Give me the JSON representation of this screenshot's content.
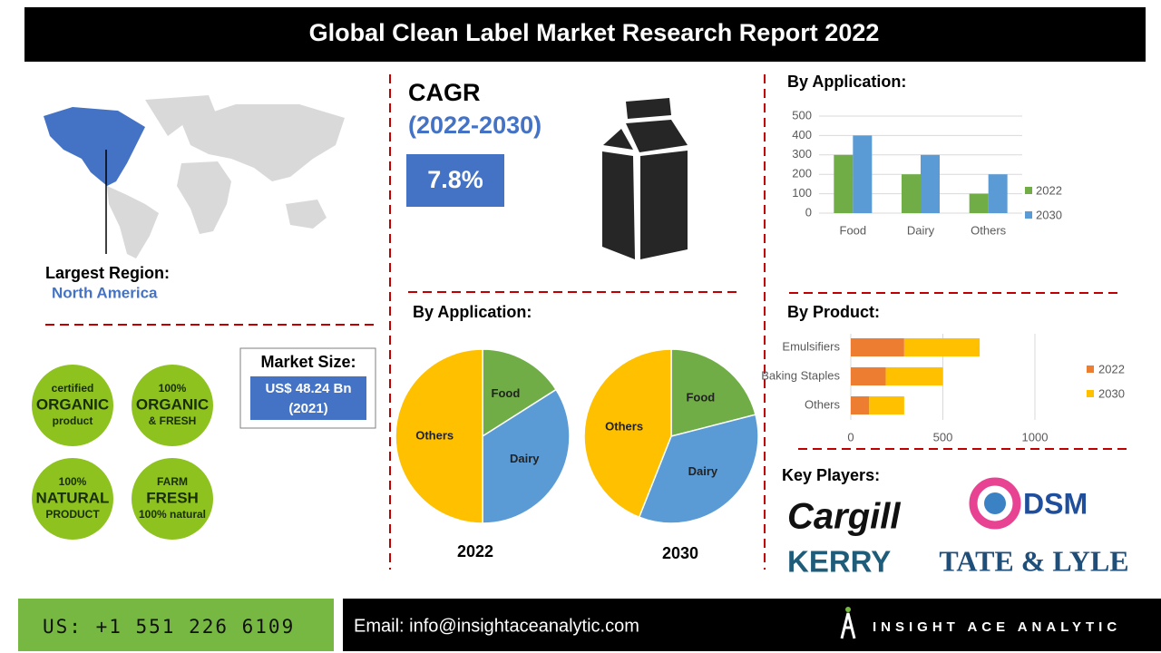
{
  "header": {
    "title": "Global Clean Label Market Research Report 2022"
  },
  "region": {
    "label": "Largest Region:",
    "value": "North America"
  },
  "cagr": {
    "label": "CAGR",
    "period": "(2022-2030)",
    "value": "7.8%"
  },
  "market_size": {
    "label": "Market Size:",
    "value": "US$ 48.24 Bn",
    "year": "(2021)"
  },
  "badges": [
    [
      "certified",
      "ORGANIC",
      "product"
    ],
    [
      "100%",
      "ORGANIC",
      "& FRESH"
    ],
    [
      "100%",
      "NATURAL",
      "PRODUCT"
    ],
    [
      "FARM",
      "FRESH",
      "100% natural"
    ]
  ],
  "sections": {
    "application_pie": "By Application:"
  },
  "chart_data": [
    {
      "type": "bar",
      "title": "By Application:",
      "categories": [
        "Food",
        "Dairy",
        "Others"
      ],
      "series": [
        {
          "name": "2022",
          "color": "#70ad47",
          "values": [
            300,
            200,
            100
          ]
        },
        {
          "name": "2030",
          "color": "#5b9bd5",
          "values": [
            400,
            300,
            200
          ]
        }
      ],
      "ylim": [
        0,
        500
      ],
      "yticks": [
        0,
        100,
        200,
        300,
        400,
        500
      ],
      "grid": true
    },
    {
      "type": "pie",
      "title": "2022",
      "categories": [
        "Food",
        "Dairy",
        "Others"
      ],
      "values": [
        16,
        34,
        50
      ],
      "colors": [
        "#70ad47",
        "#5b9bd5",
        "#ffc000"
      ]
    },
    {
      "type": "pie",
      "title": "2030",
      "categories": [
        "Food",
        "Dairy",
        "Others"
      ],
      "values": [
        21,
        35,
        44
      ],
      "colors": [
        "#70ad47",
        "#5b9bd5",
        "#ffc000"
      ]
    },
    {
      "type": "hbar",
      "title": "By Product:",
      "stacked": true,
      "categories": [
        "Emulsifiers",
        "Baking Staples",
        "Others"
      ],
      "series": [
        {
          "name": "2022",
          "color": "#ed7d31",
          "values": [
            290,
            190,
            100
          ]
        },
        {
          "name": "2030",
          "color": "#ffc000",
          "values": [
            410,
            310,
            190
          ]
        }
      ],
      "xlim": [
        0,
        1000
      ],
      "xticks": [
        0,
        500,
        1000
      ],
      "grid": true
    }
  ],
  "key_players": {
    "title": "Key Players:",
    "names": [
      "Cargill",
      "DSM",
      "KERRY",
      "TATE & LYLE"
    ]
  },
  "footer": {
    "phone": "US: +1 551 226 6109",
    "email": "Email: info@insightaceanalytic.com",
    "brand": "INSIGHT ACE ANALYTIC"
  }
}
